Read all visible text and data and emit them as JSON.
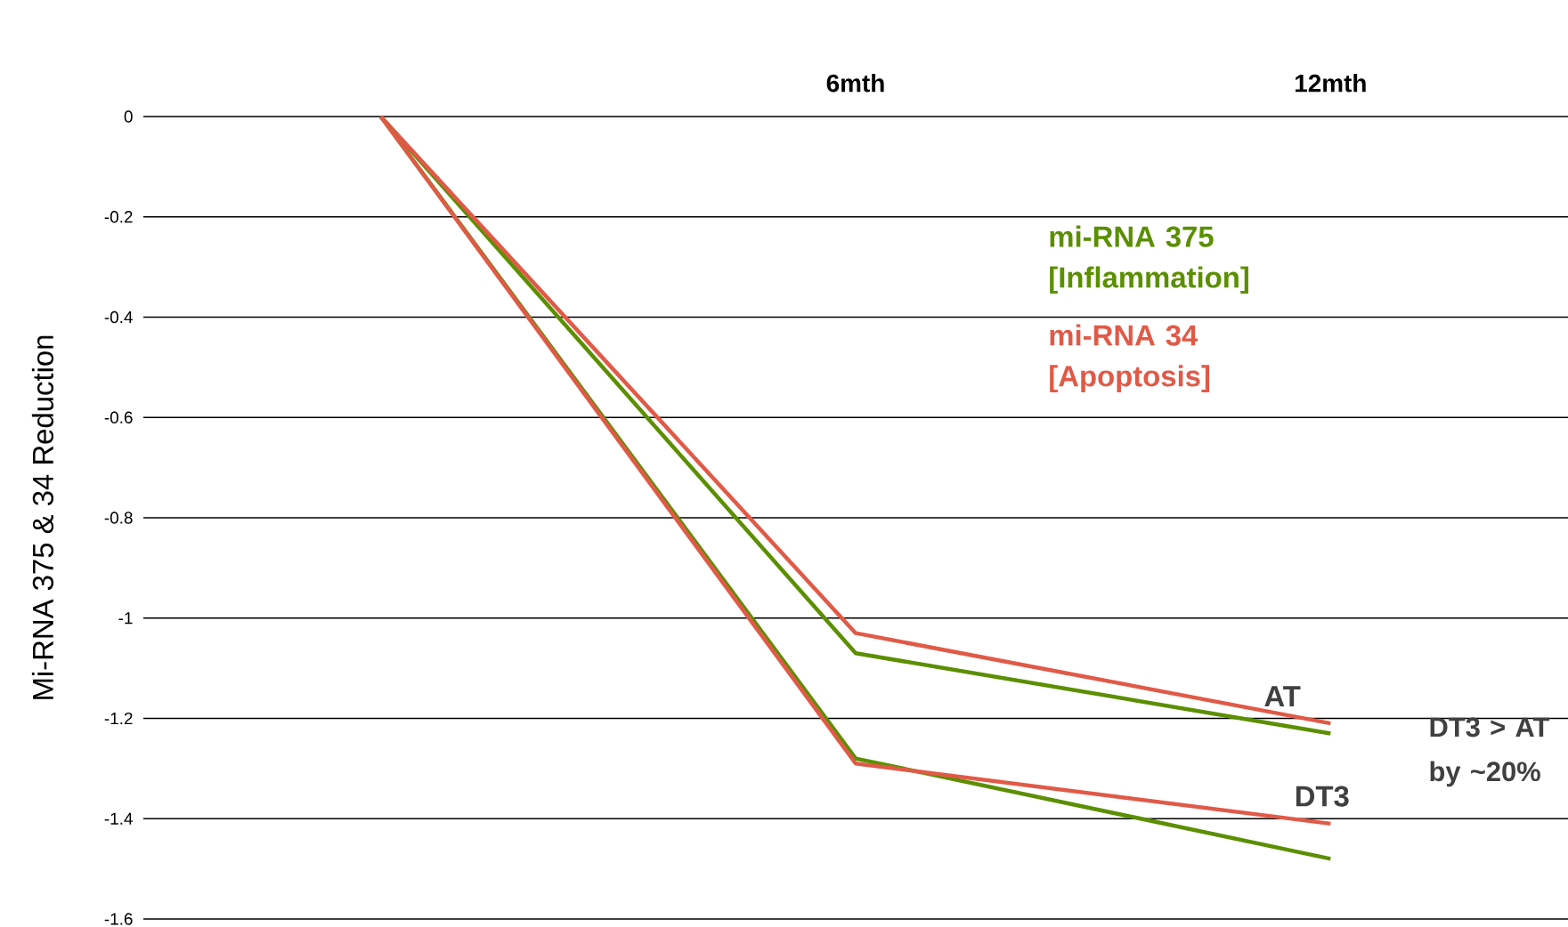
{
  "chart_data": {
    "type": "line",
    "ylabel": "Mi-RNA 375 & 34 Reduction",
    "categories": [
      null,
      "6mth",
      "12mth"
    ],
    "series": [
      {
        "name": "mi-RNA 375 [Inflammation]",
        "color": "#5b8f00",
        "values": [
          0,
          -1.07,
          -1.23
        ]
      },
      {
        "name": "mi-RNA 34 [Apoptosis]",
        "color": "#e05a47",
        "values": [
          0,
          -1.03,
          -1.21
        ]
      },
      {
        "color": "#5b8f00",
        "values": [
          0,
          -1.28,
          -1.48
        ]
      },
      {
        "color": "#e05a47",
        "values": [
          0,
          -1.29,
          -1.41
        ]
      }
    ],
    "ylim": [
      -1.6,
      0
    ],
    "yticks": [
      -1.6,
      -1.4,
      -1.2,
      -1,
      -0.8,
      -0.6,
      -0.4,
      -0.2,
      0
    ],
    "grid": "y",
    "annotations": [
      {
        "text": "AT",
        "x": "12mth",
        "y": -1.2
      },
      {
        "text": "DT3",
        "x": "12mth",
        "y": -1.4
      },
      "DT3 > AT by ~20%"
    ]
  }
}
